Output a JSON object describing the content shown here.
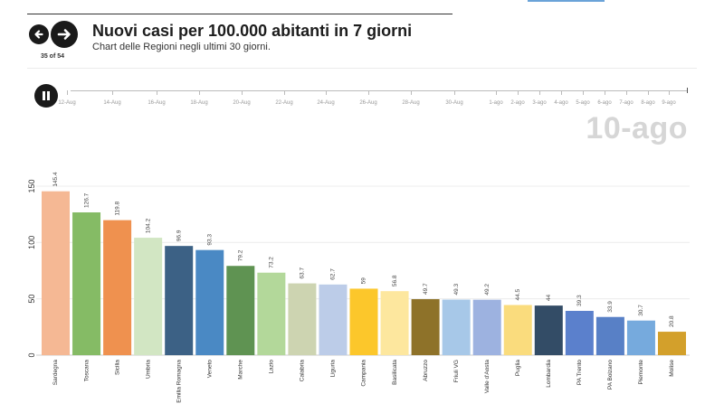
{
  "header": {
    "prev_icon": "arrow-left-icon",
    "next_icon": "arrow-right-icon",
    "counter": "35 of 54",
    "title": "Nuovi casi per 100.000 abitanti in 7 giorni",
    "subtitle": "Chart delle Regioni negli ultimi 30 giorni."
  },
  "player": {
    "pause_icon": "pause-icon",
    "current_date": "10-ago",
    "timeline_labels": [
      "12-Aug",
      "14-Aug",
      "16-Aug",
      "18-Aug",
      "20-Aug",
      "22-Aug",
      "24-Aug",
      "26-Aug",
      "28-Aug",
      "30-Aug",
      "1-ago",
      "2-ago",
      "3-ago",
      "4-ago",
      "5-ago",
      "6-ago",
      "7-ago",
      "8-ago",
      "9-ago"
    ]
  },
  "chart_data": {
    "type": "bar",
    "title": "",
    "xlabel": "",
    "ylabel": "",
    "ylim": [
      0,
      160
    ],
    "yticks": [
      0,
      50,
      100,
      150
    ],
    "grid": true,
    "categories": [
      "Sardegna",
      "Toscana",
      "Sicilia",
      "Umbria",
      "Emilia Romagna",
      "Veneto",
      "Marche",
      "Lazio",
      "Calabria",
      "Liguria",
      "Campania",
      "Basilicata",
      "Abruzzo",
      "Friuli VG",
      "Valle d'Aosta",
      "Puglia",
      "Lombardia",
      "PA Trento",
      "PA Bolzano",
      "Piemonte",
      "Molise"
    ],
    "values": [
      145.4,
      126.7,
      119.8,
      104.2,
      96.9,
      93.3,
      79.2,
      73.2,
      63.7,
      62.7,
      59,
      56.8,
      49.7,
      49.3,
      49.2,
      44.5,
      44,
      39.3,
      33.9,
      30.7,
      20.8
    ],
    "value_labels": [
      "145.4",
      "126.7",
      "119.8",
      "104.2",
      "96.9",
      "93.3",
      "79.2",
      "73.2",
      "63.7",
      "62.7",
      "59",
      "56.8",
      "49.7",
      "49.3",
      "49.2",
      "44.5",
      "44",
      "39.3",
      "33.9",
      "30.7",
      "20.8"
    ],
    "colors": [
      "#f5b894",
      "#85bb65",
      "#ef914f",
      "#d2e6c3",
      "#3c6185",
      "#4a89c4",
      "#5f9352",
      "#b3d89a",
      "#cdd4b1",
      "#bccce8",
      "#fcc72b",
      "#fde79e",
      "#8e7229",
      "#a7c8e8",
      "#9db2e0",
      "#fadc7d",
      "#334c66",
      "#5b80cc",
      "#5880c6",
      "#76aadd",
      "#d3a02b"
    ]
  }
}
